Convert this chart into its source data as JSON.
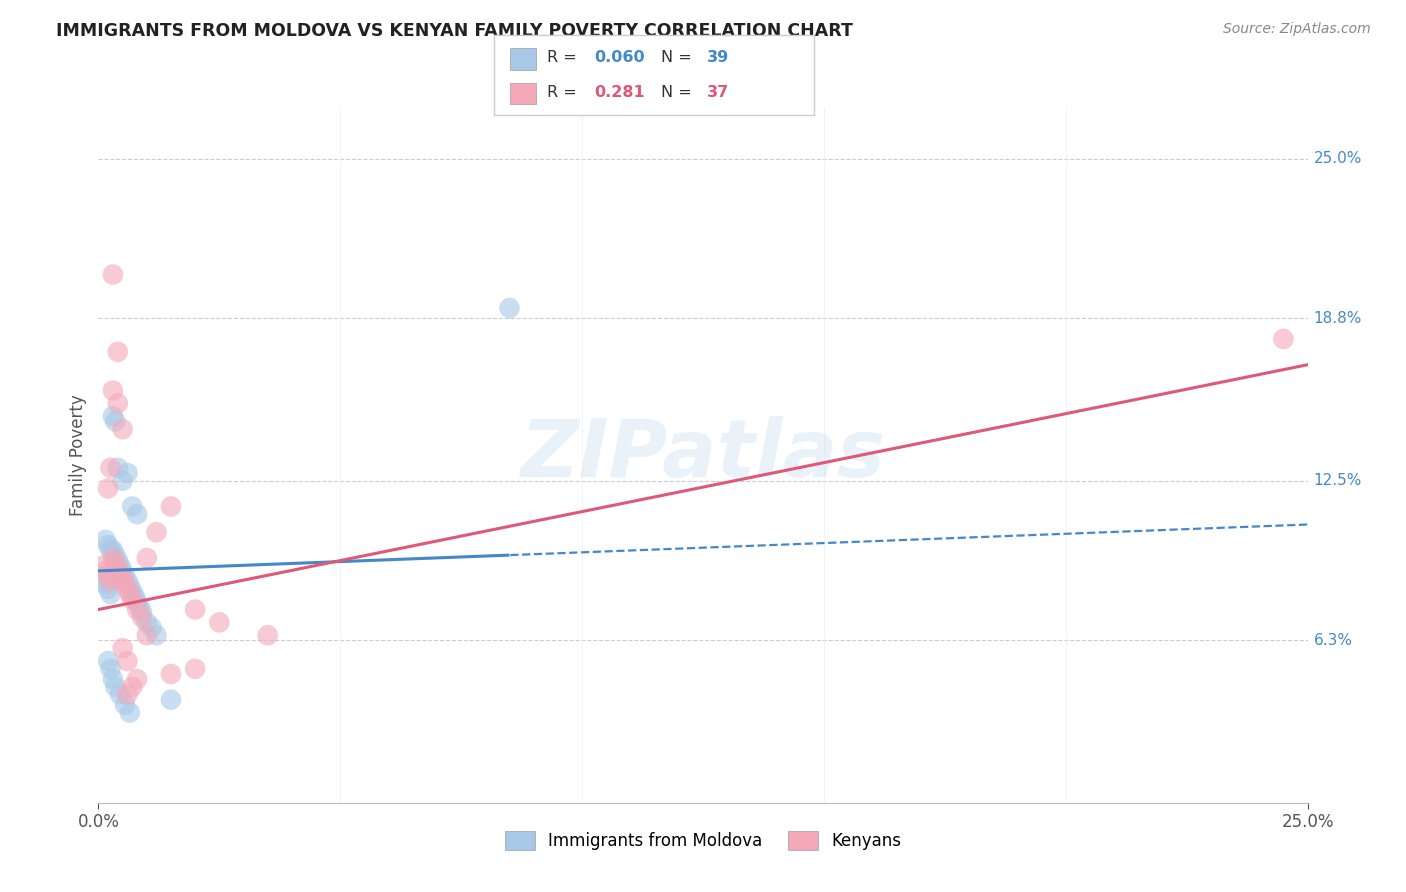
{
  "title": "IMMIGRANTS FROM MOLDOVA VS KENYAN FAMILY POVERTY CORRELATION CHART",
  "source": "Source: ZipAtlas.com",
  "ylabel": "Family Poverty",
  "legend_label1": "Immigrants from Moldova",
  "legend_label2": "Kenyans",
  "r1": "0.060",
  "n1": "39",
  "r2": "0.281",
  "n2": "37",
  "ytick_labels": [
    "6.3%",
    "12.5%",
    "18.8%",
    "25.0%"
  ],
  "ytick_values": [
    6.3,
    12.5,
    18.8,
    25.0
  ],
  "xlim": [
    0,
    25
  ],
  "ylim": [
    0,
    27
  ],
  "color_blue": "#a8c8e8",
  "color_pink": "#f4a8b8",
  "line_blue": "#4488cc",
  "line_pink": "#e05878",
  "watermark": "ZIPatlas",
  "blue_scatter_x": [
    0.1,
    0.15,
    0.2,
    0.25,
    0.3,
    0.35,
    0.4,
    0.45,
    0.5,
    0.55,
    0.6,
    0.65,
    0.7,
    0.75,
    0.8,
    0.85,
    0.9,
    1.0,
    1.1,
    1.2,
    0.15,
    0.2,
    0.25,
    0.3,
    0.35,
    0.4,
    0.5,
    0.6,
    0.7,
    0.8,
    0.2,
    0.25,
    0.3,
    0.35,
    0.45,
    0.55,
    0.65,
    1.5,
    8.5
  ],
  "blue_scatter_y": [
    8.8,
    8.5,
    8.3,
    8.1,
    9.8,
    9.6,
    9.4,
    9.2,
    9.0,
    8.8,
    8.6,
    8.4,
    8.2,
    8.0,
    7.8,
    7.6,
    7.4,
    7.0,
    6.8,
    6.5,
    10.2,
    10.0,
    9.8,
    15.0,
    14.8,
    13.0,
    12.5,
    12.8,
    11.5,
    11.2,
    5.5,
    5.2,
    4.8,
    4.5,
    4.2,
    3.8,
    3.5,
    4.0,
    19.2
  ],
  "blue_solid_xmax": 8.5,
  "pink_scatter_x": [
    0.1,
    0.15,
    0.2,
    0.25,
    0.3,
    0.35,
    0.4,
    0.45,
    0.5,
    0.55,
    0.6,
    0.65,
    0.7,
    0.8,
    0.9,
    1.0,
    1.2,
    1.5,
    2.0,
    2.5,
    0.2,
    0.25,
    0.3,
    0.4,
    0.5,
    0.6,
    0.7,
    0.8,
    1.0,
    1.5,
    2.0,
    3.5,
    0.3,
    0.4,
    0.5,
    0.6,
    24.5
  ],
  "pink_scatter_y": [
    9.2,
    9.0,
    8.8,
    8.6,
    9.5,
    9.3,
    9.1,
    8.9,
    8.7,
    8.5,
    8.3,
    8.1,
    7.9,
    7.5,
    7.2,
    9.5,
    10.5,
    11.5,
    7.5,
    7.0,
    12.2,
    13.0,
    20.5,
    15.5,
    14.5,
    5.5,
    4.5,
    4.8,
    6.5,
    5.0,
    5.2,
    6.5,
    16.0,
    17.5,
    6.0,
    4.2,
    18.0
  ],
  "blue_line_x0": 0.0,
  "blue_line_y0": 9.0,
  "blue_line_x1": 25.0,
  "blue_line_y1": 10.8,
  "blue_solid_end_x": 8.5,
  "pink_line_x0": 0.0,
  "pink_line_y0": 7.5,
  "pink_line_x1": 25.0,
  "pink_line_y1": 17.0
}
